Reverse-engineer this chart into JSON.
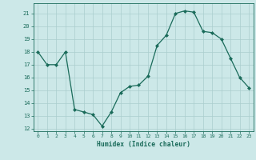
{
  "x": [
    0,
    1,
    2,
    3,
    4,
    5,
    6,
    7,
    8,
    9,
    10,
    11,
    12,
    13,
    14,
    15,
    16,
    17,
    18,
    19,
    20,
    21,
    22,
    23
  ],
  "y": [
    18,
    17,
    17,
    18,
    13.5,
    13.3,
    13.1,
    12.2,
    13.3,
    14.8,
    15.3,
    15.4,
    16.1,
    18.5,
    19.3,
    21.0,
    21.2,
    21.1,
    19.6,
    19.5,
    19.0,
    17.5,
    16.0,
    15.2
  ],
  "xlim": [
    -0.5,
    23.5
  ],
  "ylim": [
    11.8,
    21.8
  ],
  "yticks": [
    12,
    13,
    14,
    15,
    16,
    17,
    18,
    19,
    20,
    21
  ],
  "xticks": [
    0,
    1,
    2,
    3,
    4,
    5,
    6,
    7,
    8,
    9,
    10,
    11,
    12,
    13,
    14,
    15,
    16,
    17,
    18,
    19,
    20,
    21,
    22,
    23
  ],
  "xlabel": "Humidex (Indice chaleur)",
  "line_color": "#1a6b5a",
  "marker": "D",
  "marker_size": 2.0,
  "bg_color": "#cce8e8",
  "grid_color": "#aacece",
  "axis_color": "#1a6b5a",
  "tick_color": "#1a6b5a",
  "label_color": "#1a6b5a"
}
